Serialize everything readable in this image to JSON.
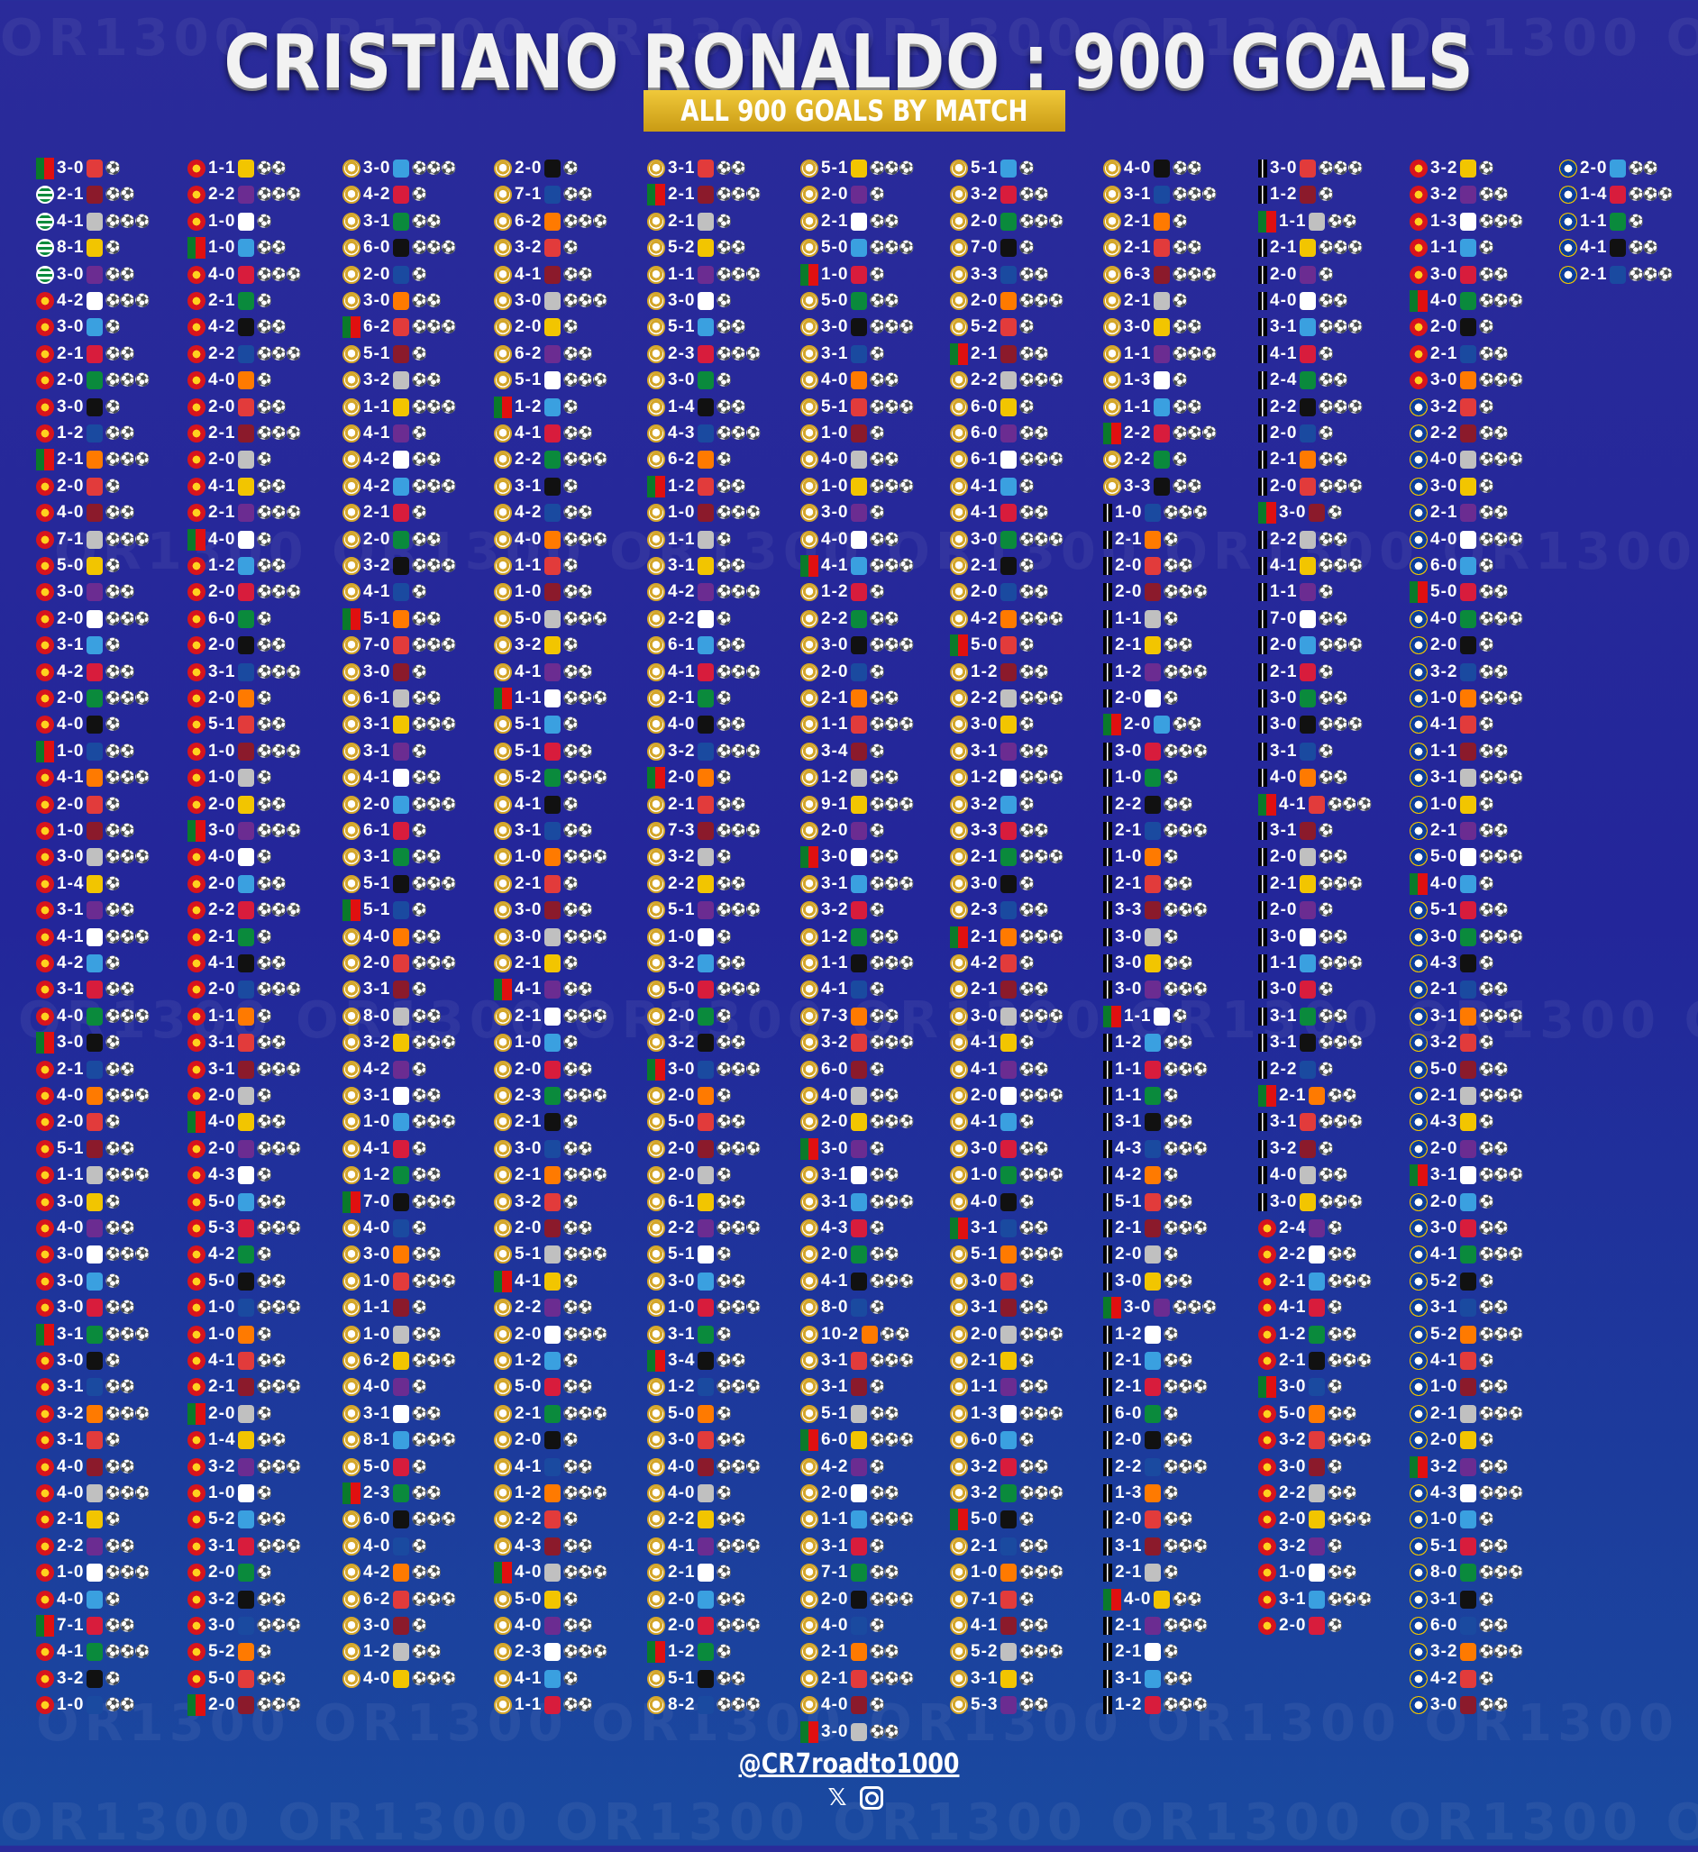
{
  "header": {
    "title": "CRISTIANO RONALDO : 900 GOALS",
    "subtitle": "ALL 900 GOALS BY MATCH",
    "watermark": "OR1300"
  },
  "footer": {
    "handle": "@CR7roadto1000",
    "x_icon": "x-logo-icon",
    "instagram_icon": "instagram-icon"
  },
  "colors": {
    "background": "#2a2b9a",
    "subtitle_bar": "#d9ac22",
    "real_madrid": "#d4a62a",
    "man_united": "#d8141c",
    "portugal": "#0a7a2a",
    "al_nassr": "#f2c500"
  },
  "columns": [
    {
      "team": "sporting-mu",
      "scores": [
        "3-0",
        "2-1",
        "4-1",
        "8-1",
        "3-0",
        "4-2",
        "3-0",
        "2-1",
        "2-0",
        "3-0",
        "1-2",
        "2-1",
        "2-0",
        "4-0",
        "7-1",
        "5-0",
        "3-0",
        "2-0",
        "3-1",
        "4-2",
        "2-0",
        "4-0",
        "1-0",
        "4-1",
        "2-0",
        "1-0",
        "3-0",
        "1-4",
        "3-1",
        "4-1",
        "4-2",
        "3-1",
        "4-0",
        "3-0",
        "2-1",
        "4-0",
        "2-0",
        "5-1",
        "1-1",
        "3-0",
        "4-0",
        "3-0",
        "3-0",
        "3-0",
        "3-1",
        "3-0",
        "3-1",
        "3-2",
        "3-1",
        "4-0",
        "4-0",
        "2-1",
        "2-2",
        "1-0",
        "4-0",
        "7-1",
        "4-1",
        "3-2",
        "1-0"
      ]
    },
    {
      "team": "mu",
      "scores": [
        "1-1",
        "2-2",
        "1-0",
        "1-0",
        "4-0",
        "2-1",
        "4-2",
        "2-2",
        "4-0",
        "2-0",
        "2-1",
        "2-0",
        "4-1",
        "2-1",
        "4-0",
        "1-2",
        "2-0",
        "6-0",
        "2-0",
        "3-1",
        "2-0",
        "5-1",
        "1-0",
        "1-0",
        "2-0",
        "3-0",
        "4-0",
        "2-0",
        "2-2",
        "2-1",
        "4-1",
        "2-0",
        "1-1",
        "3-1",
        "3-1",
        "2-0",
        "4-0",
        "2-0",
        "4-3",
        "5-0",
        "5-3",
        "4-2",
        "5-0",
        "1-0",
        "1-0",
        "4-1",
        "2-1",
        "2-0",
        "1-4",
        "3-2",
        "1-0",
        "5-2",
        "3-1",
        "2-0",
        "3-2",
        "3-0",
        "5-2",
        "5-0",
        "2-0"
      ]
    },
    {
      "team": "rm",
      "scores": [
        "3-0",
        "4-2",
        "3-1",
        "6-0",
        "2-0",
        "3-0",
        "6-2",
        "5-1",
        "3-2",
        "1-1",
        "4-1",
        "4-2",
        "4-2",
        "2-1",
        "2-0",
        "3-2",
        "4-1",
        "5-1",
        "7-0",
        "3-0",
        "6-1",
        "3-1",
        "3-1",
        "4-1",
        "2-0",
        "6-1",
        "3-1",
        "5-1",
        "5-1",
        "4-0",
        "2-0",
        "3-1",
        "8-0",
        "3-2",
        "4-2",
        "3-1",
        "1-0",
        "4-1",
        "1-2",
        "7-0",
        "4-0",
        "3-0",
        "1-0",
        "1-1",
        "1-0",
        "6-2",
        "4-0",
        "3-1",
        "8-1",
        "5-0",
        "2-3",
        "6-0",
        "4-0",
        "4-2",
        "6-2",
        "3-0",
        "1-2",
        "4-0"
      ]
    },
    {
      "team": "rm",
      "scores": [
        "2-0",
        "7-1",
        "6-2",
        "3-2",
        "4-1",
        "3-0",
        "2-0",
        "6-2",
        "5-1",
        "1-2",
        "4-1",
        "2-2",
        "3-1",
        "4-2",
        "4-0",
        "1-1",
        "1-0",
        "5-0",
        "3-2",
        "4-1",
        "1-1",
        "5-1",
        "5-1",
        "5-2",
        "4-1",
        "3-1",
        "1-0",
        "2-1",
        "3-0",
        "3-0",
        "2-1",
        "4-1",
        "2-1",
        "1-0",
        "2-0",
        "2-3",
        "2-1",
        "3-0",
        "2-1",
        "3-2",
        "2-0",
        "5-1",
        "4-1",
        "2-2",
        "2-0",
        "1-2",
        "5-0",
        "2-1",
        "2-0",
        "4-1",
        "1-2",
        "2-2",
        "4-3",
        "4-0",
        "5-0",
        "4-0",
        "2-3",
        "4-1",
        "1-1"
      ]
    },
    {
      "team": "rm",
      "scores": [
        "3-1",
        "2-1",
        "2-1",
        "5-2",
        "1-1",
        "3-0",
        "5-1",
        "2-3",
        "3-0",
        "1-4",
        "4-3",
        "6-2",
        "1-2",
        "1-0",
        "1-1",
        "3-1",
        "4-2",
        "2-2",
        "6-1",
        "4-1",
        "2-1",
        "4-0",
        "3-2",
        "2-0",
        "2-1",
        "7-3",
        "3-2",
        "2-2",
        "5-1",
        "1-0",
        "3-2",
        "5-0",
        "2-0",
        "3-2",
        "3-0",
        "2-0",
        "5-0",
        "2-0",
        "2-0",
        "6-1",
        "2-2",
        "5-1",
        "3-0",
        "1-0",
        "3-1",
        "3-4",
        "1-2",
        "5-0",
        "3-0",
        "4-0",
        "4-0",
        "2-2",
        "4-1",
        "2-1",
        "2-0",
        "2-0",
        "1-2",
        "5-1",
        "8-2"
      ]
    },
    {
      "team": "rm",
      "scores": [
        "5-1",
        "2-0",
        "2-1",
        "5-0",
        "1-0",
        "5-0",
        "3-0",
        "3-1",
        "4-0",
        "5-1",
        "1-0",
        "4-0",
        "1-0",
        "3-0",
        "4-0",
        "4-1",
        "1-2",
        "2-2",
        "3-0",
        "2-0",
        "2-1",
        "1-1",
        "3-4",
        "1-2",
        "9-1",
        "2-0",
        "3-0",
        "3-1",
        "3-2",
        "1-2",
        "1-1",
        "4-1",
        "7-3",
        "3-2",
        "6-0",
        "4-0",
        "2-0",
        "3-0",
        "3-1",
        "3-1",
        "4-3",
        "2-0",
        "4-1",
        "8-0",
        "10-2",
        "3-1",
        "3-1",
        "5-1",
        "6-0",
        "4-2",
        "2-0",
        "1-1",
        "3-1",
        "7-1",
        "2-0",
        "4-0",
        "2-1",
        "2-1",
        "4-0",
        "3-0"
      ]
    },
    {
      "team": "rm",
      "scores": [
        "5-1",
        "3-2",
        "2-0",
        "7-0",
        "3-3",
        "2-0",
        "5-2",
        "2-1",
        "2-2",
        "6-0",
        "6-0",
        "6-1",
        "4-1",
        "4-1",
        "3-0",
        "2-1",
        "2-0",
        "4-2",
        "5-0",
        "1-2",
        "2-2",
        "3-0",
        "3-1",
        "1-2",
        "3-2",
        "3-3",
        "2-1",
        "3-0",
        "2-3",
        "2-1",
        "4-2",
        "2-1",
        "3-0",
        "4-1",
        "4-1",
        "2-0",
        "4-1",
        "3-0",
        "1-0",
        "4-0",
        "3-1",
        "5-1",
        "3-0",
        "3-1",
        "2-0",
        "2-1",
        "1-1",
        "1-3",
        "6-0",
        "3-2",
        "3-2",
        "5-0",
        "2-1",
        "1-0",
        "7-1",
        "4-1",
        "5-2",
        "3-1",
        "5-3"
      ]
    },
    {
      "team": "rm-ju",
      "scores": [
        "4-0",
        "3-1",
        "2-1",
        "2-1",
        "6-3",
        "2-1",
        "3-0",
        "1-1",
        "1-3",
        "1-1",
        "2-2",
        "2-2",
        "3-3",
        "1-0",
        "2-1",
        "2-0",
        "2-0",
        "1-1",
        "2-1",
        "1-2",
        "2-0",
        "2-0",
        "3-0",
        "1-0",
        "2-2",
        "2-1",
        "1-0",
        "2-1",
        "3-3",
        "3-0",
        "3-0",
        "3-0",
        "1-1",
        "1-2",
        "1-1",
        "1-1",
        "3-1",
        "4-3",
        "4-2",
        "5-1",
        "2-1",
        "2-0",
        "3-0",
        "3-0",
        "1-2",
        "2-1",
        "2-1",
        "6-0",
        "2-0",
        "2-2",
        "1-3",
        "2-0",
        "3-1",
        "2-1",
        "4-0",
        "2-1",
        "2-1",
        "3-1",
        "1-2"
      ]
    },
    {
      "team": "ju-mu",
      "scores": [
        "3-0",
        "1-2",
        "1-1",
        "2-1",
        "2-0",
        "4-0",
        "3-1",
        "4-1",
        "2-4",
        "2-2",
        "2-0",
        "2-1",
        "2-0",
        "3-0",
        "2-2",
        "4-1",
        "1-1",
        "7-0",
        "2-0",
        "2-1",
        "3-0",
        "3-0",
        "3-1",
        "4-0",
        "4-1",
        "3-1",
        "2-0",
        "2-1",
        "2-0",
        "3-0",
        "1-1",
        "3-0",
        "3-1",
        "3-1",
        "2-2",
        "2-1",
        "3-1",
        "3-2",
        "4-0",
        "3-0",
        "2-4",
        "2-2",
        "2-1",
        "4-1",
        "1-2",
        "2-1",
        "3-0",
        "5-0",
        "3-2",
        "3-0",
        "2-2",
        "2-0",
        "3-2",
        "1-0",
        "3-1",
        "2-0"
      ]
    },
    {
      "team": "mu-an",
      "scores": [
        "3-2",
        "3-2",
        "1-3",
        "1-1",
        "3-0",
        "4-0",
        "2-0",
        "2-1",
        "3-0",
        "3-2",
        "2-2",
        "4-0",
        "3-0",
        "2-1",
        "4-0",
        "6-0",
        "5-0",
        "4-0",
        "2-0",
        "3-2",
        "1-0",
        "4-1",
        "1-1",
        "3-1",
        "1-0",
        "2-1",
        "5-0",
        "4-0",
        "5-1",
        "3-0",
        "4-3",
        "2-1",
        "3-1",
        "3-2",
        "5-0",
        "2-1",
        "4-3",
        "2-0",
        "3-1",
        "2-0",
        "3-0",
        "4-1",
        "5-2",
        "3-1",
        "5-2",
        "4-1",
        "1-0",
        "2-1",
        "2-0",
        "3-2",
        "4-3",
        "1-0",
        "5-1",
        "8-0",
        "3-1",
        "6-0",
        "3-2",
        "4-2",
        "3-0"
      ]
    },
    {
      "team": "an",
      "scores": [
        "2-0",
        "1-4",
        "1-1",
        "4-1",
        "2-1"
      ]
    }
  ]
}
